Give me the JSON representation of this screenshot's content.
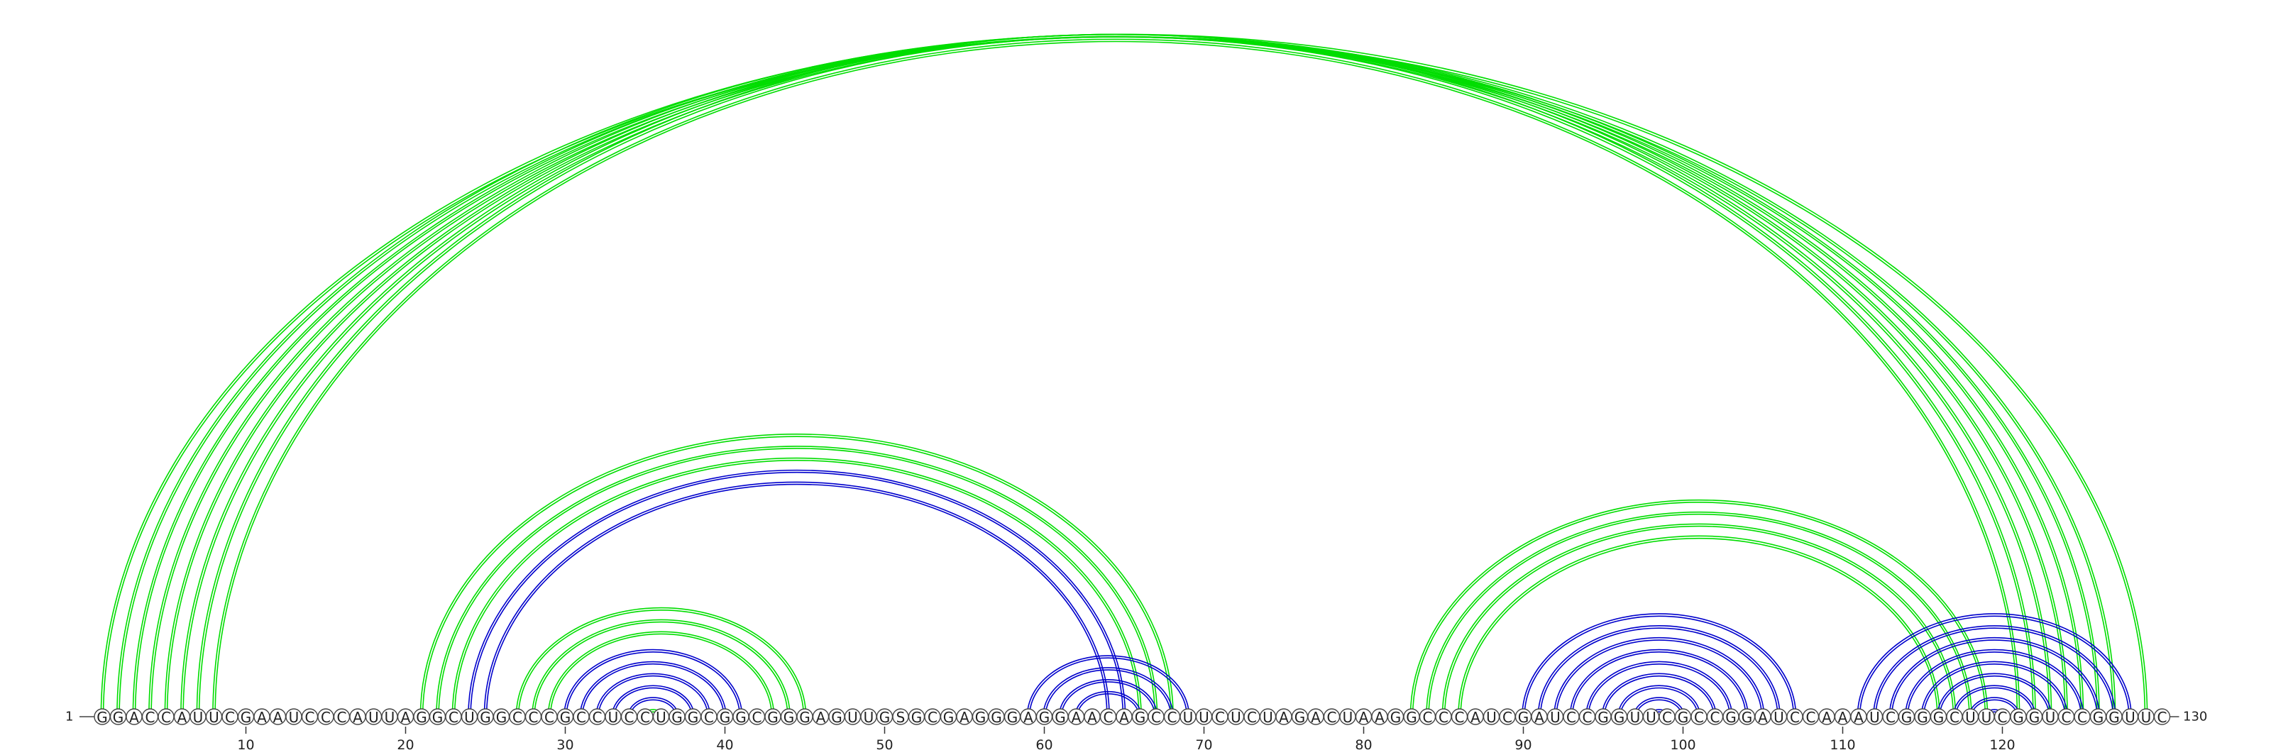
{
  "diagram": {
    "sequence": "GGACCAUUCGAAUCCCAUUAGGCUGGCCCGCCUCCUGGCGGCGGGAGUUGSGCGAGGGAGGAACAGCCUUCUCUAGACUAAGGCCCAUCGAUCCGGUUCGCCGGAUCCAAAUCGGGCUUCGGUCCGGUUC",
    "start_label": "1",
    "end_label": "130",
    "ticks": [
      10,
      20,
      30,
      40,
      50,
      60,
      70,
      80,
      90,
      100,
      110,
      120
    ],
    "colors": {
      "upper": "#00dd00",
      "lower": "#0000cc"
    },
    "arcs": [
      {
        "i": 1,
        "j": 129,
        "color": "upper"
      },
      {
        "i": 2,
        "j": 127,
        "color": "upper"
      },
      {
        "i": 3,
        "j": 126,
        "color": "upper"
      },
      {
        "i": 4,
        "j": 125,
        "color": "upper"
      },
      {
        "i": 5,
        "j": 124,
        "color": "upper"
      },
      {
        "i": 6,
        "j": 123,
        "color": "upper"
      },
      {
        "i": 7,
        "j": 122,
        "color": "upper"
      },
      {
        "i": 8,
        "j": 121,
        "color": "upper"
      },
      {
        "i": 21,
        "j": 68,
        "color": "upper"
      },
      {
        "i": 22,
        "j": 67,
        "color": "upper"
      },
      {
        "i": 23,
        "j": 66,
        "color": "upper"
      },
      {
        "i": 24,
        "j": 65,
        "color": "lower"
      },
      {
        "i": 25,
        "j": 64,
        "color": "lower"
      },
      {
        "i": 27,
        "j": 45,
        "color": "upper"
      },
      {
        "i": 28,
        "j": 44,
        "color": "upper"
      },
      {
        "i": 29,
        "j": 43,
        "color": "upper"
      },
      {
        "i": 30,
        "j": 41,
        "color": "lower"
      },
      {
        "i": 31,
        "j": 40,
        "color": "lower"
      },
      {
        "i": 32,
        "j": 39,
        "color": "lower"
      },
      {
        "i": 33,
        "j": 38,
        "color": "lower"
      },
      {
        "i": 34,
        "j": 37,
        "color": "lower"
      },
      {
        "i": 35,
        "j": 36,
        "color": "upper"
      },
      {
        "i": 59,
        "j": 69,
        "color": "lower"
      },
      {
        "i": 60,
        "j": 68,
        "color": "lower"
      },
      {
        "i": 61,
        "j": 67,
        "color": "lower"
      },
      {
        "i": 62,
        "j": 66,
        "color": "lower"
      },
      {
        "i": 83,
        "j": 119,
        "color": "upper"
      },
      {
        "i": 84,
        "j": 118,
        "color": "upper"
      },
      {
        "i": 85,
        "j": 117,
        "color": "upper"
      },
      {
        "i": 86,
        "j": 116,
        "color": "upper"
      },
      {
        "i": 90,
        "j": 107,
        "color": "lower"
      },
      {
        "i": 91,
        "j": 106,
        "color": "lower"
      },
      {
        "i": 92,
        "j": 105,
        "color": "lower"
      },
      {
        "i": 93,
        "j": 104,
        "color": "lower"
      },
      {
        "i": 94,
        "j": 103,
        "color": "lower"
      },
      {
        "i": 95,
        "j": 102,
        "color": "lower"
      },
      {
        "i": 96,
        "j": 101,
        "color": "lower"
      },
      {
        "i": 97,
        "j": 100,
        "color": "lower"
      },
      {
        "i": 98,
        "j": 99,
        "color": "lower"
      },
      {
        "i": 111,
        "j": 128,
        "color": "lower"
      },
      {
        "i": 112,
        "j": 127,
        "color": "lower"
      },
      {
        "i": 113,
        "j": 126,
        "color": "lower"
      },
      {
        "i": 114,
        "j": 125,
        "color": "lower"
      },
      {
        "i": 115,
        "j": 124,
        "color": "lower"
      },
      {
        "i": 116,
        "j": 123,
        "color": "lower"
      },
      {
        "i": 117,
        "j": 122,
        "color": "lower"
      },
      {
        "i": 118,
        "j": 121,
        "color": "lower"
      },
      {
        "i": 119,
        "j": 120,
        "color": "lower"
      }
    ]
  }
}
